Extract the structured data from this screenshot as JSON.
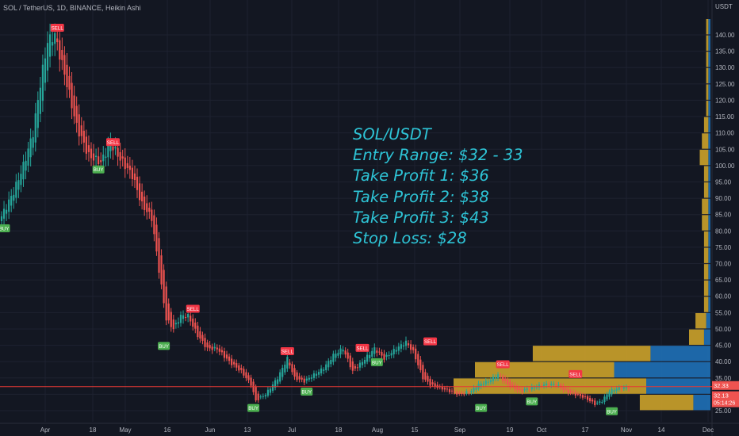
{
  "header": {
    "symbol_line": "SOL / TetherUS, 1D, BINANCE, Heikin Ashi"
  },
  "price_axis": {
    "unit_label": "USDT",
    "ticks": [
      "25.00",
      "30.00",
      "35.00",
      "40.00",
      "45.00",
      "50.00",
      "55.00",
      "60.00",
      "65.00",
      "70.00",
      "75.00",
      "80.00",
      "85.00",
      "90.00",
      "95.00",
      "100.00",
      "105.00",
      "110.00",
      "115.00",
      "120.00",
      "125.00",
      "130.00",
      "135.00",
      "140.00"
    ],
    "last_price_label": "32.33",
    "current_price_label": "32.13",
    "countdown_label": "05:14:26"
  },
  "time_axis": {
    "ticks": [
      "Apr",
      "18",
      "May",
      "16",
      "Jun",
      "13",
      "Jul",
      "18",
      "Aug",
      "15",
      "Sep",
      "19",
      "Oct",
      "17",
      "Nov",
      "14",
      "Dec"
    ]
  },
  "annotation": {
    "lines": [
      "SOL/USDT",
      "Entry Range: $32 - 33",
      "Take Profit 1: $36",
      "Take Profit 2: $38",
      "Take Profit 3: $43",
      "Stop Loss: $28"
    ]
  },
  "colors": {
    "background": "#131722",
    "up": "#26a69a",
    "down": "#ef5350",
    "annotation": "#2ec4d6",
    "vp_gold": "#c8a02a",
    "vp_blue": "#1e6fb4",
    "last_price_line": "#e53935"
  },
  "chart_data": {
    "type": "candlestick",
    "style": "Heikin Ashi",
    "symbol": "SOL / TetherUS",
    "interval": "1D",
    "exchange": "BINANCE",
    "ylim": [
      23,
      147
    ],
    "y_unit": "USDT",
    "last_price": 32.33,
    "current_price": 32.13,
    "x_ticks": [
      "Apr",
      "18",
      "May",
      "16",
      "Jun",
      "13",
      "Jul",
      "18",
      "Aug",
      "15",
      "Sep",
      "19",
      "Oct",
      "17",
      "Nov",
      "14",
      "Dec"
    ],
    "key_points": [
      {
        "t": 0,
        "v": 83
      },
      {
        "t": 6,
        "v": 92
      },
      {
        "t": 10,
        "v": 100
      },
      {
        "t": 14,
        "v": 110
      },
      {
        "t": 17,
        "v": 125
      },
      {
        "t": 20,
        "v": 138
      },
      {
        "t": 23,
        "v": 140
      },
      {
        "t": 28,
        "v": 125
      },
      {
        "t": 32,
        "v": 112
      },
      {
        "t": 37,
        "v": 103
      },
      {
        "t": 42,
        "v": 101
      },
      {
        "t": 46,
        "v": 107
      },
      {
        "t": 50,
        "v": 102
      },
      {
        "t": 55,
        "v": 97
      },
      {
        "t": 59,
        "v": 88
      },
      {
        "t": 63,
        "v": 84
      },
      {
        "t": 66,
        "v": 68
      },
      {
        "t": 69,
        "v": 53
      },
      {
        "t": 72,
        "v": 50
      },
      {
        "t": 75,
        "v": 54
      },
      {
        "t": 78,
        "v": 54
      },
      {
        "t": 82,
        "v": 48
      },
      {
        "t": 86,
        "v": 44
      },
      {
        "t": 90,
        "v": 44
      },
      {
        "t": 95,
        "v": 40
      },
      {
        "t": 100,
        "v": 37
      },
      {
        "t": 104,
        "v": 33
      },
      {
        "t": 106,
        "v": 28
      },
      {
        "t": 110,
        "v": 30
      },
      {
        "t": 115,
        "v": 35
      },
      {
        "t": 119,
        "v": 41
      },
      {
        "t": 122,
        "v": 35
      },
      {
        "t": 126,
        "v": 34
      },
      {
        "t": 130,
        "v": 36
      },
      {
        "t": 134,
        "v": 38
      },
      {
        "t": 138,
        "v": 42
      },
      {
        "t": 142,
        "v": 44
      },
      {
        "t": 146,
        "v": 37
      },
      {
        "t": 150,
        "v": 40
      },
      {
        "t": 155,
        "v": 44
      },
      {
        "t": 159,
        "v": 41
      },
      {
        "t": 164,
        "v": 44
      },
      {
        "t": 168,
        "v": 46
      },
      {
        "t": 171,
        "v": 43
      },
      {
        "t": 175,
        "v": 35
      },
      {
        "t": 178,
        "v": 33
      },
      {
        "t": 182,
        "v": 32
      },
      {
        "t": 186,
        "v": 31
      },
      {
        "t": 190,
        "v": 30
      },
      {
        "t": 195,
        "v": 31
      },
      {
        "t": 198,
        "v": 33
      },
      {
        "t": 202,
        "v": 34
      },
      {
        "t": 206,
        "v": 36
      },
      {
        "t": 210,
        "v": 33
      },
      {
        "t": 215,
        "v": 31
      },
      {
        "t": 220,
        "v": 32
      },
      {
        "t": 225,
        "v": 33
      },
      {
        "t": 230,
        "v": 33
      },
      {
        "t": 234,
        "v": 31
      },
      {
        "t": 238,
        "v": 30
      },
      {
        "t": 242,
        "v": 29
      },
      {
        "t": 246,
        "v": 27
      },
      {
        "t": 249,
        "v": 28
      },
      {
        "t": 252,
        "v": 31
      },
      {
        "t": 256,
        "v": 32
      },
      {
        "t": 259,
        "v": 32
      }
    ],
    "signals": [
      {
        "label": "BUY",
        "t": 1,
        "v": 83
      },
      {
        "label": "SELL",
        "t": 23,
        "v": 140
      },
      {
        "label": "BUY",
        "t": 40,
        "v": 101
      },
      {
        "label": "SELL",
        "t": 46,
        "v": 105
      },
      {
        "label": "BUY",
        "t": 67,
        "v": 47
      },
      {
        "label": "SELL",
        "t": 79,
        "v": 54
      },
      {
        "label": "BUY",
        "t": 104,
        "v": 28
      },
      {
        "label": "SELL",
        "t": 118,
        "v": 41
      },
      {
        "label": "BUY",
        "t": 126,
        "v": 33
      },
      {
        "label": "BUY",
        "t": 155,
        "v": 42
      },
      {
        "label": "SELL",
        "t": 149,
        "v": 42
      },
      {
        "label": "SELL",
        "t": 177,
        "v": 44
      },
      {
        "label": "BUY",
        "t": 198,
        "v": 28
      },
      {
        "label": "SELL",
        "t": 207,
        "v": 37
      },
      {
        "label": "BUY",
        "t": 219,
        "v": 30
      },
      {
        "label": "SELL",
        "t": 237,
        "v": 34
      },
      {
        "label": "BUY",
        "t": 252,
        "v": 27
      }
    ],
    "volume_profile": [
      {
        "price": 27.5,
        "gold": 0.25,
        "blue": 0.08
      },
      {
        "price": 32.5,
        "gold": 0.9,
        "blue": 0.3
      },
      {
        "price": 37.5,
        "gold": 0.65,
        "blue": 0.45
      },
      {
        "price": 42.5,
        "gold": 0.55,
        "blue": 0.28
      },
      {
        "price": 47.5,
        "gold": 0.07,
        "blue": 0.03
      },
      {
        "price": 52.5,
        "gold": 0.05,
        "blue": 0.02
      },
      {
        "price": 57.5,
        "gold": 0.02,
        "blue": 0.01
      },
      {
        "price": 62.5,
        "gold": 0.02,
        "blue": 0.01
      },
      {
        "price": 67.5,
        "gold": 0.02,
        "blue": 0.01
      },
      {
        "price": 72.5,
        "gold": 0.02,
        "blue": 0.01
      },
      {
        "price": 77.5,
        "gold": 0.02,
        "blue": 0.01
      },
      {
        "price": 82.5,
        "gold": 0.03,
        "blue": 0.01
      },
      {
        "price": 87.5,
        "gold": 0.03,
        "blue": 0.01
      },
      {
        "price": 92.5,
        "gold": 0.02,
        "blue": 0.01
      },
      {
        "price": 97.5,
        "gold": 0.02,
        "blue": 0.01
      },
      {
        "price": 102.5,
        "gold": 0.04,
        "blue": 0.01
      },
      {
        "price": 107.5,
        "gold": 0.03,
        "blue": 0.01
      },
      {
        "price": 112.5,
        "gold": 0.02,
        "blue": 0.01
      },
      {
        "price": 117.5,
        "gold": 0.01,
        "blue": 0.01
      },
      {
        "price": 122.5,
        "gold": 0.01,
        "blue": 0.01
      },
      {
        "price": 127.5,
        "gold": 0.01,
        "blue": 0.01
      },
      {
        "price": 132.5,
        "gold": 0.01,
        "blue": 0.01
      },
      {
        "price": 137.5,
        "gold": 0.01,
        "blue": 0.01
      },
      {
        "price": 142.5,
        "gold": 0.01,
        "blue": 0.01
      }
    ]
  }
}
